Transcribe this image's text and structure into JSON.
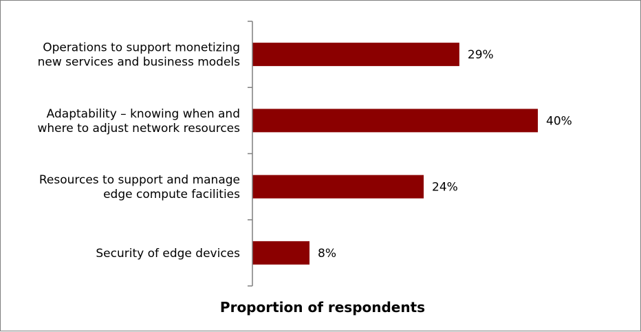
{
  "chart_data": {
    "type": "bar",
    "orientation": "horizontal",
    "categories": [
      [
        "Operations to support monetizing",
        "new services and business models"
      ],
      [
        "Adaptability – knowing when and",
        "where to adjust network resources"
      ],
      [
        "Resources to support and manage",
        "edge compute facilities"
      ],
      [
        "Security of edge devices"
      ]
    ],
    "values": [
      29,
      40,
      24,
      8
    ],
    "value_labels": [
      "29%",
      "40%",
      "24%",
      "8%"
    ],
    "xlabel": "Proportion of respondents",
    "ylabel": "",
    "title": "",
    "xlim": [
      0,
      40
    ],
    "grid": false,
    "bar_color": "#8b0000"
  }
}
